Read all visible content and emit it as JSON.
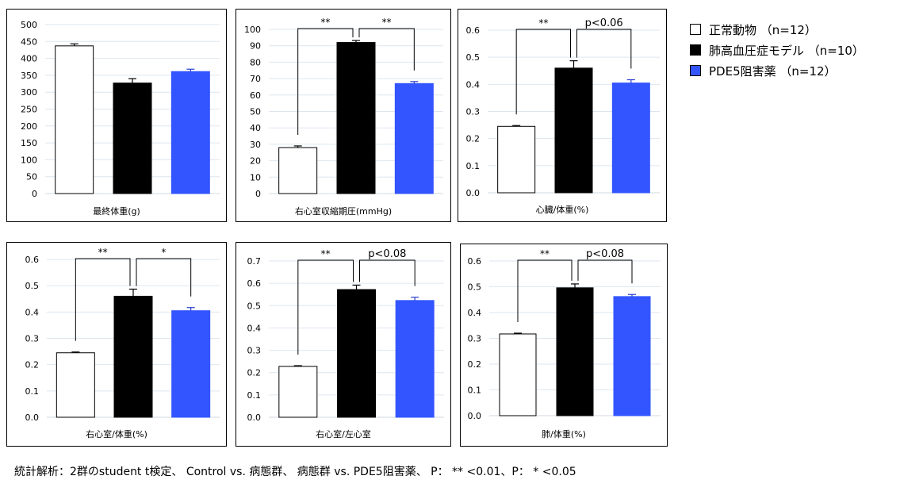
{
  "colors": {
    "normal": "#ffffff",
    "model": "#000000",
    "pde5": "#3355ff",
    "grid": "#dde6f0",
    "axis": "#000000"
  },
  "legend": [
    {
      "label": "正常動物 （n=12）",
      "color": "#ffffff"
    },
    {
      "label": "肺高血圧症モデル （n=10）",
      "color": "#000000"
    },
    {
      "label": "PDE5阻害薬 （n=12）",
      "color": "#3355ff"
    }
  ],
  "footnote": "統計解析：2群のstudent t検定、 Control vs. 病態群、 病態群 vs. PDE5阻害薬、 P： ** <0.01、P： * <0.05",
  "chart_data": [
    {
      "type": "bar",
      "xlabel": "最終体重(g)",
      "ylim": [
        0,
        500
      ],
      "yticks": [
        0,
        50,
        100,
        150,
        200,
        250,
        300,
        350,
        400,
        450,
        500
      ],
      "decimals": 0,
      "values": [
        437,
        327,
        361
      ],
      "errors": [
        6,
        13,
        7
      ],
      "sig": []
    },
    {
      "type": "bar",
      "xlabel": "右心室収縮期圧(mmHg)",
      "ylim": [
        0,
        100
      ],
      "yticks": [
        0,
        10,
        20,
        30,
        40,
        50,
        60,
        70,
        80,
        90,
        100
      ],
      "decimals": 0,
      "values": [
        28,
        92,
        67
      ],
      "errors": [
        1,
        1.2,
        1.2
      ],
      "sig": [
        "**",
        "**"
      ]
    },
    {
      "type": "bar",
      "xlabel": "心臓/体重(%)",
      "ylim": [
        0,
        0.6
      ],
      "yticks": [
        0,
        0.1,
        0.2,
        0.3,
        0.4,
        0.5,
        0.6
      ],
      "decimals": 1,
      "values": [
        0.245,
        0.46,
        0.405
      ],
      "errors": [
        0.003,
        0.027,
        0.012
      ],
      "sig": [
        "**",
        "p<0.06"
      ]
    },
    {
      "type": "bar",
      "xlabel": "右心室/体重(%)",
      "ylim": [
        0,
        0.6
      ],
      "yticks": [
        0,
        0.1,
        0.2,
        0.3,
        0.4,
        0.5,
        0.6
      ],
      "decimals": 1,
      "values": [
        0.245,
        0.46,
        0.405
      ],
      "errors": [
        0.003,
        0.027,
        0.012
      ],
      "sig": [
        "**",
        "*"
      ]
    },
    {
      "type": "bar",
      "xlabel": "右心室/左心室",
      "ylim": [
        0,
        0.7
      ],
      "yticks": [
        0,
        0.1,
        0.2,
        0.3,
        0.4,
        0.5,
        0.6,
        0.7
      ],
      "decimals": 1,
      "values": [
        0.228,
        0.572,
        0.523
      ],
      "errors": [
        0.003,
        0.02,
        0.015
      ],
      "sig": [
        "**",
        "p<0.08"
      ]
    },
    {
      "type": "bar",
      "xlabel": "肺/体重(%)",
      "ylim": [
        0,
        0.6
      ],
      "yticks": [
        0,
        0.1,
        0.2,
        0.3,
        0.4,
        0.5,
        0.6
      ],
      "decimals": 1,
      "values": [
        0.317,
        0.496,
        0.462
      ],
      "errors": [
        0.003,
        0.015,
        0.008
      ],
      "sig": [
        "**",
        "p<0.08"
      ]
    }
  ]
}
